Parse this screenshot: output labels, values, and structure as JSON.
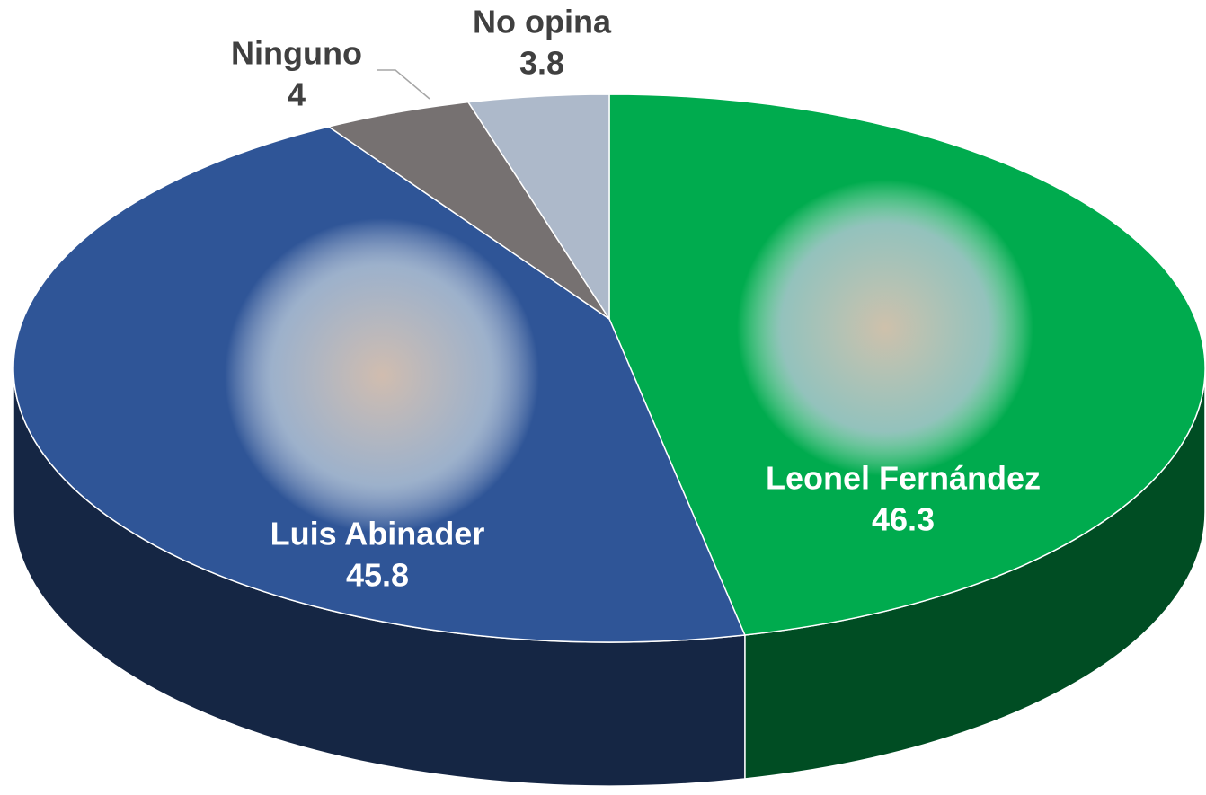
{
  "chart_data": {
    "type": "pie3d",
    "categories": [
      "Leonel Fernández",
      "Luis Abinader",
      "Ninguno",
      "No opina"
    ],
    "values": [
      46.3,
      45.8,
      4,
      3.8
    ],
    "colors": [
      "#00ab4e",
      "#2f5597",
      "#767171",
      "#adb9ca"
    ]
  }
}
